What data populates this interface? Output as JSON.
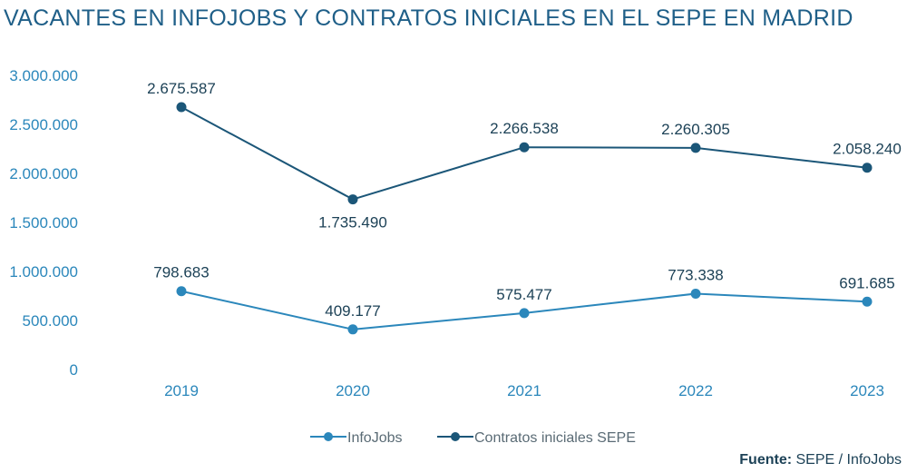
{
  "chart_data": {
    "type": "line",
    "title": "VACANTES EN INFOJOBS Y CONTRATOS INICIALES EN EL SEPE EN MADRID",
    "categories": [
      "2019",
      "2020",
      "2021",
      "2022",
      "2023"
    ],
    "ylim": [
      0,
      3000000
    ],
    "yticks": [
      0,
      500000,
      1000000,
      1500000,
      2000000,
      2500000,
      3000000
    ],
    "ytick_labels": [
      "0",
      "500.000",
      "1.000.000",
      "1.500.000",
      "2.000.000",
      "2.500.000",
      "3.000.000"
    ],
    "grid": false,
    "legend_position": "bottom-center",
    "series": [
      {
        "name": "InfoJobs",
        "color": "#2b87bb",
        "values": [
          798683,
          409177,
          575477,
          773338,
          691685
        ],
        "labels": [
          "798.683",
          "409.177",
          "575.477",
          "773.338",
          "691.685"
        ]
      },
      {
        "name": "Contratos iniciales SEPE",
        "color": "#1b5678",
        "values": [
          2675587,
          1735490,
          2266538,
          2260305,
          2058240
        ],
        "labels": [
          "2.675.587",
          "1.735.490",
          "2.266.538",
          "2.260.305",
          "2.058.240"
        ]
      }
    ]
  },
  "source": {
    "prefix": "Fuente:",
    "text": " SEPE / InfoJobs"
  },
  "colors": {
    "title": "#1f5f88",
    "axis_text": "#2b87bb",
    "label_text": "#1d4257"
  }
}
